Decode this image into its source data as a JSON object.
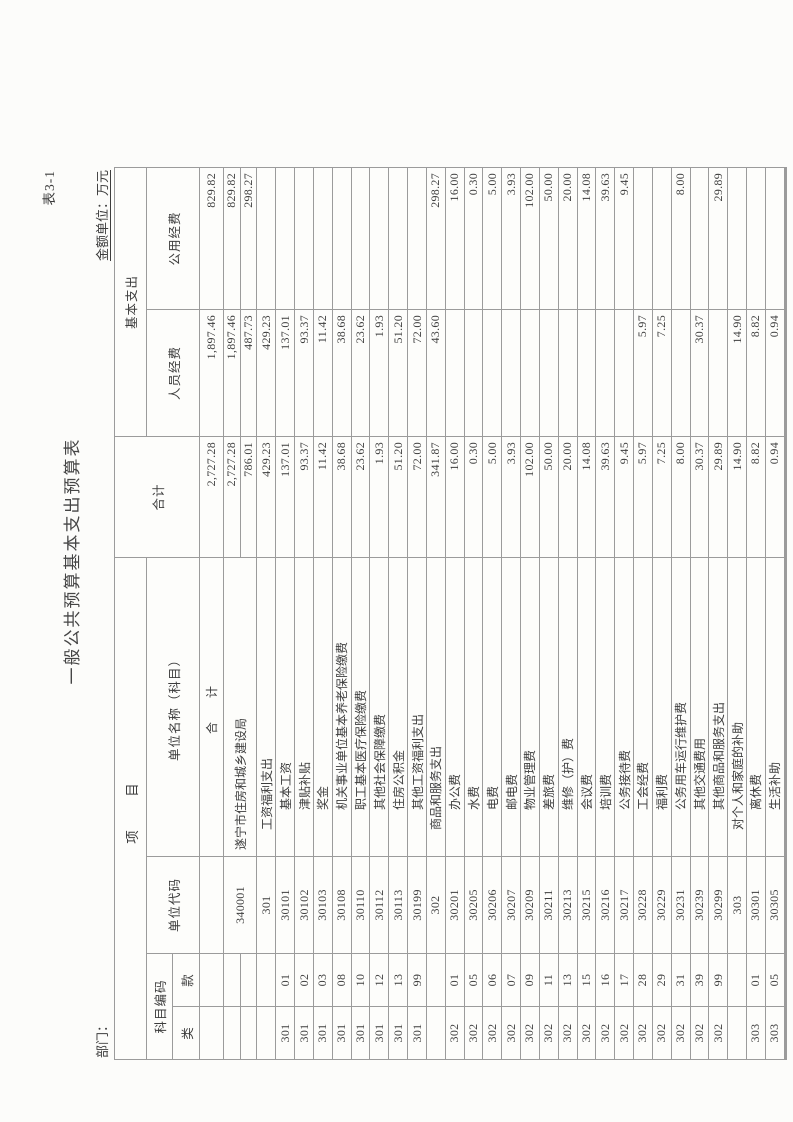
{
  "page": {
    "form_no": "表3-1",
    "title": "一般公共预算基本支出预算表",
    "department_label": "部门：",
    "unit_label": "金额单位：万元"
  },
  "table": {
    "header": {
      "item": "项　目",
      "subject_code": "科目编码",
      "lei": "类",
      "kuan": "款",
      "unit_code": "单位代码",
      "unit_name": "单位名称（科目）",
      "total": "合计",
      "basic": "基本支出",
      "personnel": "人员经费",
      "public": "公用经费"
    },
    "rows": [
      {
        "lei": "",
        "kuan": "",
        "code": "",
        "name": "合　计",
        "indent": "center",
        "total": "2,727.28",
        "personnel": "1,897.46",
        "public": "829.82",
        "tall": true
      },
      {
        "lei": "",
        "kuan": "",
        "code": "340001",
        "name": "遂宁市住房和城乡建设局",
        "indent": 0,
        "span": 2,
        "total": "2,727.28",
        "personnel": "1,897.46",
        "public": "829.82"
      },
      {
        "sub": true,
        "lei": "",
        "kuan": "",
        "total": "786.01",
        "personnel": "487.73",
        "public": "298.27"
      },
      {
        "lei": "",
        "kuan": "",
        "code": "301",
        "name": "工资福利支出",
        "indent": 1,
        "total": "429.23",
        "personnel": "429.23",
        "public": ""
      },
      {
        "lei": "301",
        "kuan": "01",
        "code": "30101",
        "name": "基本工资",
        "indent": 2,
        "total": "137.01",
        "personnel": "137.01",
        "public": ""
      },
      {
        "lei": "301",
        "kuan": "02",
        "code": "30102",
        "name": "津贴补贴",
        "indent": 2,
        "total": "93.37",
        "personnel": "93.37",
        "public": ""
      },
      {
        "lei": "301",
        "kuan": "03",
        "code": "30103",
        "name": "奖金",
        "indent": 2,
        "total": "11.42",
        "personnel": "11.42",
        "public": ""
      },
      {
        "lei": "301",
        "kuan": "08",
        "code": "30108",
        "name": "机关事业单位基本养老保险缴费",
        "indent": 2,
        "total": "38.68",
        "personnel": "38.68",
        "public": ""
      },
      {
        "lei": "301",
        "kuan": "10",
        "code": "30110",
        "name": "职工基本医疗保险缴费",
        "indent": 2,
        "total": "23.62",
        "personnel": "23.62",
        "public": ""
      },
      {
        "lei": "301",
        "kuan": "12",
        "code": "30112",
        "name": "其他社会保障缴费",
        "indent": 2,
        "total": "1.93",
        "personnel": "1.93",
        "public": ""
      },
      {
        "lei": "301",
        "kuan": "13",
        "code": "30113",
        "name": "住房公积金",
        "indent": 2,
        "total": "51.20",
        "personnel": "51.20",
        "public": ""
      },
      {
        "lei": "301",
        "kuan": "99",
        "code": "30199",
        "name": "其他工资福利支出",
        "indent": 2,
        "total": "72.00",
        "personnel": "72.00",
        "public": ""
      },
      {
        "lei": "",
        "kuan": "",
        "code": "302",
        "name": "商品和服务支出",
        "indent": 1,
        "total": "341.87",
        "personnel": "43.60",
        "public": "298.27"
      },
      {
        "lei": "302",
        "kuan": "01",
        "code": "30201",
        "name": "办公费",
        "indent": 2,
        "total": "16.00",
        "personnel": "",
        "public": "16.00"
      },
      {
        "lei": "302",
        "kuan": "05",
        "code": "30205",
        "name": "水费",
        "indent": 2,
        "total": "0.30",
        "personnel": "",
        "public": "0.30"
      },
      {
        "lei": "302",
        "kuan": "06",
        "code": "30206",
        "name": "电费",
        "indent": 2,
        "total": "5.00",
        "personnel": "",
        "public": "5.00"
      },
      {
        "lei": "302",
        "kuan": "07",
        "code": "30207",
        "name": "邮电费",
        "indent": 2,
        "total": "3.93",
        "personnel": "",
        "public": "3.93"
      },
      {
        "lei": "302",
        "kuan": "09",
        "code": "30209",
        "name": "物业管理费",
        "indent": 2,
        "total": "102.00",
        "personnel": "",
        "public": "102.00"
      },
      {
        "lei": "302",
        "kuan": "11",
        "code": "30211",
        "name": "差旅费",
        "indent": 2,
        "total": "50.00",
        "personnel": "",
        "public": "50.00"
      },
      {
        "lei": "302",
        "kuan": "13",
        "code": "30213",
        "name": "维修（护）费",
        "indent": 2,
        "total": "20.00",
        "personnel": "",
        "public": "20.00"
      },
      {
        "lei": "302",
        "kuan": "15",
        "code": "30215",
        "name": "会议费",
        "indent": 2,
        "total": "14.08",
        "personnel": "",
        "public": "14.08"
      },
      {
        "lei": "302",
        "kuan": "16",
        "code": "30216",
        "name": "培训费",
        "indent": 2,
        "total": "39.63",
        "personnel": "",
        "public": "39.63"
      },
      {
        "lei": "302",
        "kuan": "17",
        "code": "30217",
        "name": "公务接待费",
        "indent": 2,
        "total": "9.45",
        "personnel": "",
        "public": "9.45"
      },
      {
        "lei": "302",
        "kuan": "28",
        "code": "30228",
        "name": "工会经费",
        "indent": 2,
        "total": "5.97",
        "personnel": "5.97",
        "public": ""
      },
      {
        "lei": "302",
        "kuan": "29",
        "code": "30229",
        "name": "福利费",
        "indent": 2,
        "total": "7.25",
        "personnel": "7.25",
        "public": ""
      },
      {
        "lei": "302",
        "kuan": "31",
        "code": "30231",
        "name": "公务用车运行维护费",
        "indent": 2,
        "total": "8.00",
        "personnel": "",
        "public": "8.00"
      },
      {
        "lei": "302",
        "kuan": "39",
        "code": "30239",
        "name": "其他交通费用",
        "indent": 2,
        "total": "30.37",
        "personnel": "30.37",
        "public": ""
      },
      {
        "lei": "302",
        "kuan": "99",
        "code": "30299",
        "name": "其他商品和服务支出",
        "indent": 2,
        "total": "29.89",
        "personnel": "",
        "public": "29.89"
      },
      {
        "lei": "",
        "kuan": "",
        "code": "303",
        "name": "对个人和家庭的补助",
        "indent": 1,
        "total": "14.90",
        "personnel": "14.90",
        "public": ""
      },
      {
        "lei": "303",
        "kuan": "01",
        "code": "30301",
        "name": "离休费",
        "indent": 2,
        "total": "8.82",
        "personnel": "8.82",
        "public": ""
      },
      {
        "lei": "303",
        "kuan": "05",
        "code": "30305",
        "name": "生活补助",
        "indent": 2,
        "total": "0.94",
        "personnel": "0.94",
        "public": ""
      },
      {
        "lei": "",
        "kuan": "",
        "code": "",
        "name": "",
        "indent": 0,
        "total": "",
        "personnel": "",
        "public": ""
      },
      {
        "lei": "",
        "kuan": "",
        "code": "",
        "name": "",
        "indent": 0,
        "total": "",
        "personnel": "",
        "public": ""
      }
    ]
  }
}
